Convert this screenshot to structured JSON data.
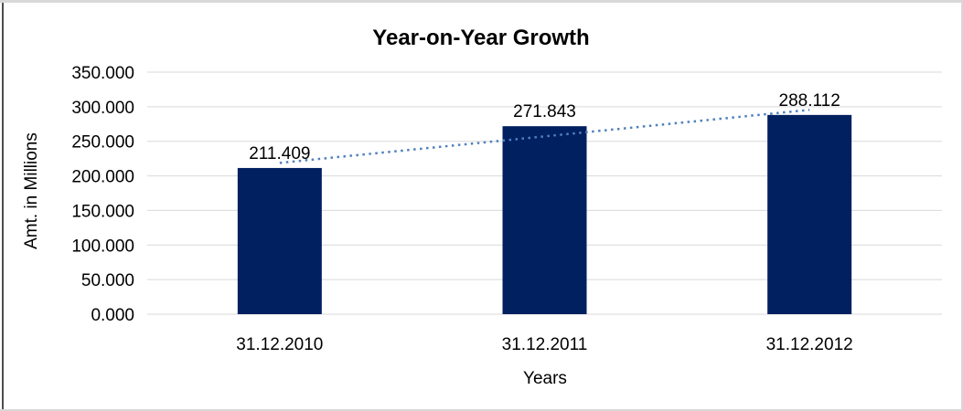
{
  "chart_data": {
    "type": "bar",
    "title": "Year-on-Year Growth",
    "xlabel": "Years",
    "ylabel": "Amt. in Millions",
    "categories": [
      "31.12.2010",
      "31.12.2011",
      "31.12.2012"
    ],
    "values": [
      211.409,
      271.843,
      288.112
    ],
    "value_labels": [
      "211.409",
      "271.843",
      "288.112"
    ],
    "yticks": [
      0,
      50,
      100,
      150,
      200,
      250,
      300,
      350
    ],
    "ytick_labels": [
      "0.000",
      "50.000",
      "100.000",
      "150.000",
      "200.000",
      "250.000",
      "300.000",
      "350.000"
    ],
    "ylim": [
      0,
      350
    ],
    "grid": "horizontal",
    "legend": "none",
    "colors": {
      "bar": "#002060",
      "trendline": "#4F81BD",
      "gridline": "#D9D9D9",
      "text": "#000000",
      "background": "#FFFFFF",
      "frame_border": "#D8D8D8"
    },
    "trendline": {
      "type": "linear",
      "style": "dotted",
      "color": "#4F81BD",
      "y_at_first_category": 218.8,
      "y_at_last_category": 295.5
    }
  }
}
